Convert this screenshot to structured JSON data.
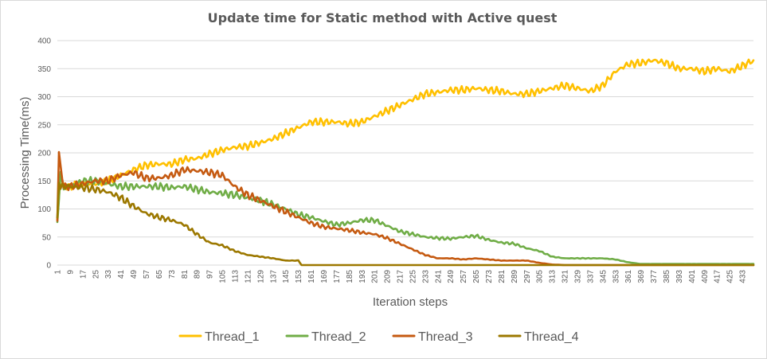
{
  "chart_data": {
    "type": "line",
    "title": "Update time for Static method with Active quest",
    "xlabel": "Iteration steps",
    "ylabel": "Processing Time(ms)",
    "ylim": [
      0,
      400
    ],
    "yticks": [
      "0",
      "50",
      "100",
      "150",
      "200",
      "250",
      "300",
      "350",
      "400"
    ],
    "xlim": [
      1,
      440
    ],
    "xticks": [
      "1",
      "9",
      "17",
      "25",
      "33",
      "41",
      "49",
      "57",
      "65",
      "73",
      "81",
      "89",
      "97",
      "105",
      "113",
      "121",
      "129",
      "137",
      "145",
      "153",
      "161",
      "169",
      "177",
      "185",
      "193",
      "201",
      "209",
      "217",
      "225",
      "233",
      "241",
      "249",
      "257",
      "265",
      "273",
      "281",
      "289",
      "297",
      "305",
      "313",
      "321",
      "329",
      "337",
      "345",
      "353",
      "361",
      "369",
      "377",
      "385",
      "393",
      "401",
      "409",
      "417",
      "425",
      "433"
    ],
    "grid": "horizontal",
    "legend": "bottom",
    "series": [
      {
        "name": "Thread_1",
        "color": "#FFC000",
        "x": [
          1,
          3,
          5,
          9,
          17,
          25,
          33,
          41,
          49,
          57,
          65,
          73,
          81,
          89,
          97,
          105,
          113,
          121,
          129,
          137,
          145,
          153,
          161,
          169,
          177,
          185,
          193,
          201,
          209,
          217,
          225,
          233,
          241,
          249,
          257,
          265,
          273,
          281,
          289,
          297,
          305,
          313,
          321,
          329,
          337,
          345,
          353,
          361,
          369,
          377,
          385,
          393,
          401,
          409,
          417,
          425,
          433,
          440
        ],
        "y": [
          80,
          160,
          140,
          140,
          145,
          145,
          150,
          160,
          170,
          178,
          180,
          180,
          188,
          190,
          198,
          205,
          210,
          212,
          218,
          225,
          235,
          245,
          255,
          255,
          255,
          252,
          255,
          265,
          275,
          285,
          295,
          305,
          308,
          312,
          312,
          315,
          312,
          310,
          305,
          305,
          310,
          315,
          320,
          315,
          310,
          320,
          345,
          358,
          360,
          365,
          360,
          350,
          350,
          345,
          350,
          345,
          355,
          365
        ]
      },
      {
        "name": "Thread_2",
        "color": "#70AD47",
        "x": [
          1,
          3,
          5,
          9,
          17,
          25,
          33,
          41,
          49,
          57,
          65,
          73,
          81,
          89,
          97,
          105,
          113,
          121,
          129,
          137,
          145,
          153,
          161,
          169,
          177,
          185,
          193,
          201,
          209,
          217,
          225,
          233,
          241,
          249,
          257,
          265,
          273,
          281,
          289,
          297,
          305,
          313,
          321,
          329,
          337,
          345,
          353,
          361,
          369,
          377,
          385,
          393,
          401,
          409,
          417,
          425,
          433,
          440
        ],
        "y": [
          80,
          160,
          140,
          140,
          150,
          150,
          145,
          140,
          140,
          140,
          140,
          138,
          140,
          135,
          130,
          128,
          125,
          120,
          115,
          108,
          100,
          90,
          85,
          78,
          72,
          75,
          80,
          80,
          70,
          60,
          55,
          50,
          48,
          47,
          50,
          52,
          45,
          40,
          38,
          30,
          25,
          15,
          12,
          12,
          12,
          12,
          10,
          5,
          2,
          2,
          2,
          2,
          2,
          2,
          2,
          2,
          2,
          2
        ]
      },
      {
        "name": "Thread_3",
        "color": "#C55A11",
        "x": [
          1,
          2,
          3,
          5,
          9,
          17,
          25,
          33,
          41,
          49,
          57,
          65,
          73,
          81,
          89,
          97,
          105,
          113,
          121,
          129,
          137,
          145,
          153,
          161,
          169,
          177,
          185,
          193,
          201,
          209,
          217,
          225,
          233,
          241,
          249,
          257,
          265,
          273,
          281,
          289,
          297,
          305,
          313,
          321,
          329,
          337,
          345,
          353,
          361,
          369,
          377,
          385,
          393,
          401,
          409,
          417,
          425,
          433,
          440
        ],
        "y": [
          80,
          200,
          175,
          140,
          140,
          145,
          150,
          150,
          160,
          165,
          155,
          155,
          160,
          170,
          168,
          165,
          160,
          140,
          125,
          115,
          105,
          95,
          85,
          75,
          68,
          65,
          62,
          58,
          55,
          48,
          38,
          28,
          18,
          12,
          12,
          10,
          12,
          10,
          8,
          8,
          8,
          4,
          1,
          0,
          0,
          0,
          0,
          0,
          0,
          0,
          0,
          0,
          0,
          0,
          0,
          0,
          0,
          0,
          0
        ]
      },
      {
        "name": "Thread_4",
        "color": "#9C7800",
        "x": [
          1,
          2,
          3,
          5,
          9,
          17,
          25,
          33,
          41,
          49,
          57,
          65,
          73,
          81,
          89,
          97,
          105,
          113,
          121,
          129,
          137,
          145,
          153,
          155,
          161,
          169,
          177,
          185,
          193,
          201,
          209,
          217,
          225,
          233,
          241,
          249,
          257,
          265,
          273,
          281,
          289,
          297,
          305,
          313,
          321,
          329,
          337,
          345,
          353,
          361,
          369,
          377,
          385,
          393,
          401,
          409,
          417,
          425,
          433,
          440
        ],
        "y": [
          80,
          150,
          140,
          140,
          140,
          138,
          135,
          130,
          120,
          105,
          92,
          85,
          80,
          72,
          55,
          40,
          35,
          25,
          18,
          15,
          12,
          8,
          8,
          0,
          0,
          0,
          0,
          0,
          0,
          0,
          0,
          0,
          0,
          0,
          0,
          0,
          0,
          0,
          0,
          0,
          0,
          0,
          0,
          0,
          0,
          0,
          0,
          0,
          0,
          0,
          0,
          0,
          0,
          0,
          0,
          0,
          0,
          0,
          0,
          0
        ]
      }
    ]
  }
}
